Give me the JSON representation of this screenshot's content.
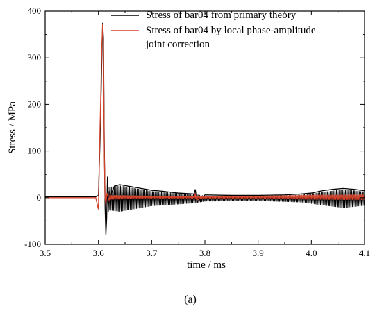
{
  "chart_data": {
    "type": "line",
    "xlabel": "time / ms",
    "ylabel": "Stress / MPa",
    "xlim": [
      3.5,
      4.1
    ],
    "ylim": [
      -100,
      400
    ],
    "x_ticks": [
      3.5,
      3.6,
      3.7,
      3.8,
      3.9,
      4.0,
      4.1
    ],
    "x_tick_labels": [
      "3.5",
      "3.6",
      "3.7",
      "3.8",
      "3.9",
      "4.0",
      "4.1"
    ],
    "y_ticks": [
      -100,
      0,
      100,
      200,
      300,
      400
    ],
    "y_tick_labels": [
      "-100",
      "0",
      "100",
      "200",
      "300",
      "400"
    ],
    "grid": false,
    "legend_position": "top-right",
    "caption": "(a)",
    "series": [
      {
        "name": "Stress of bar04 from primary theory",
        "name_lines": [
          "Stress of bar04 from primary theory"
        ],
        "color": "#000000",
        "x": [
          3.5,
          3.595,
          3.6,
          3.603,
          3.6065,
          3.608,
          3.6095,
          3.611,
          3.6125,
          3.614,
          3.6155,
          3.617,
          3.6185,
          3.62,
          3.622,
          3.625,
          3.63,
          3.64,
          3.65,
          3.66,
          3.67,
          3.68,
          3.69,
          3.7,
          3.72,
          3.75,
          3.78,
          3.782,
          3.785,
          3.8,
          3.85,
          3.9,
          3.95,
          3.98,
          4.0,
          4.02,
          4.04,
          4.06,
          4.08,
          4.1
        ],
        "y": [
          2,
          2,
          5,
          120,
          300,
          375,
          340,
          120,
          -20,
          -80,
          -45,
          45,
          -30,
          15,
          -15,
          10,
          25,
          28,
          26,
          24,
          22,
          20,
          18,
          16,
          14,
          10,
          8,
          18,
          -10,
          6,
          5,
          5,
          6,
          8,
          10,
          15,
          18,
          20,
          18,
          15
        ],
        "oscillation_envelope": [
          [
            3.62,
            25
          ],
          [
            3.64,
            28
          ],
          [
            3.7,
            16
          ],
          [
            3.78,
            10
          ],
          [
            3.8,
            6
          ],
          [
            3.9,
            5
          ],
          [
            3.98,
            8
          ],
          [
            4.06,
            20
          ],
          [
            4.1,
            15
          ]
        ]
      },
      {
        "name": "Stress of bar04 by local phase-amplitude joint correction",
        "name_lines": [
          "Stress of bar04 by local phase-amplitude",
          "joint correction"
        ],
        "color": "#d2412a",
        "x": [
          3.5,
          3.595,
          3.6,
          3.603,
          3.6065,
          3.608,
          3.6095,
          3.611,
          3.6125,
          3.614,
          3.616,
          3.62,
          3.63,
          3.7,
          3.78,
          3.782,
          3.785,
          3.8,
          3.9,
          4.0,
          4.05,
          4.1
        ],
        "y": [
          0,
          0,
          -25,
          150,
          330,
          372,
          320,
          100,
          0,
          -15,
          10,
          -5,
          3,
          2,
          2,
          8,
          -5,
          3,
          3,
          4,
          4,
          4
        ],
        "oscillation_envelope": [
          [
            3.62,
            5
          ],
          [
            3.7,
            3
          ],
          [
            3.78,
            3
          ],
          [
            3.9,
            3
          ],
          [
            4.0,
            5
          ],
          [
            4.1,
            6
          ]
        ]
      }
    ]
  }
}
